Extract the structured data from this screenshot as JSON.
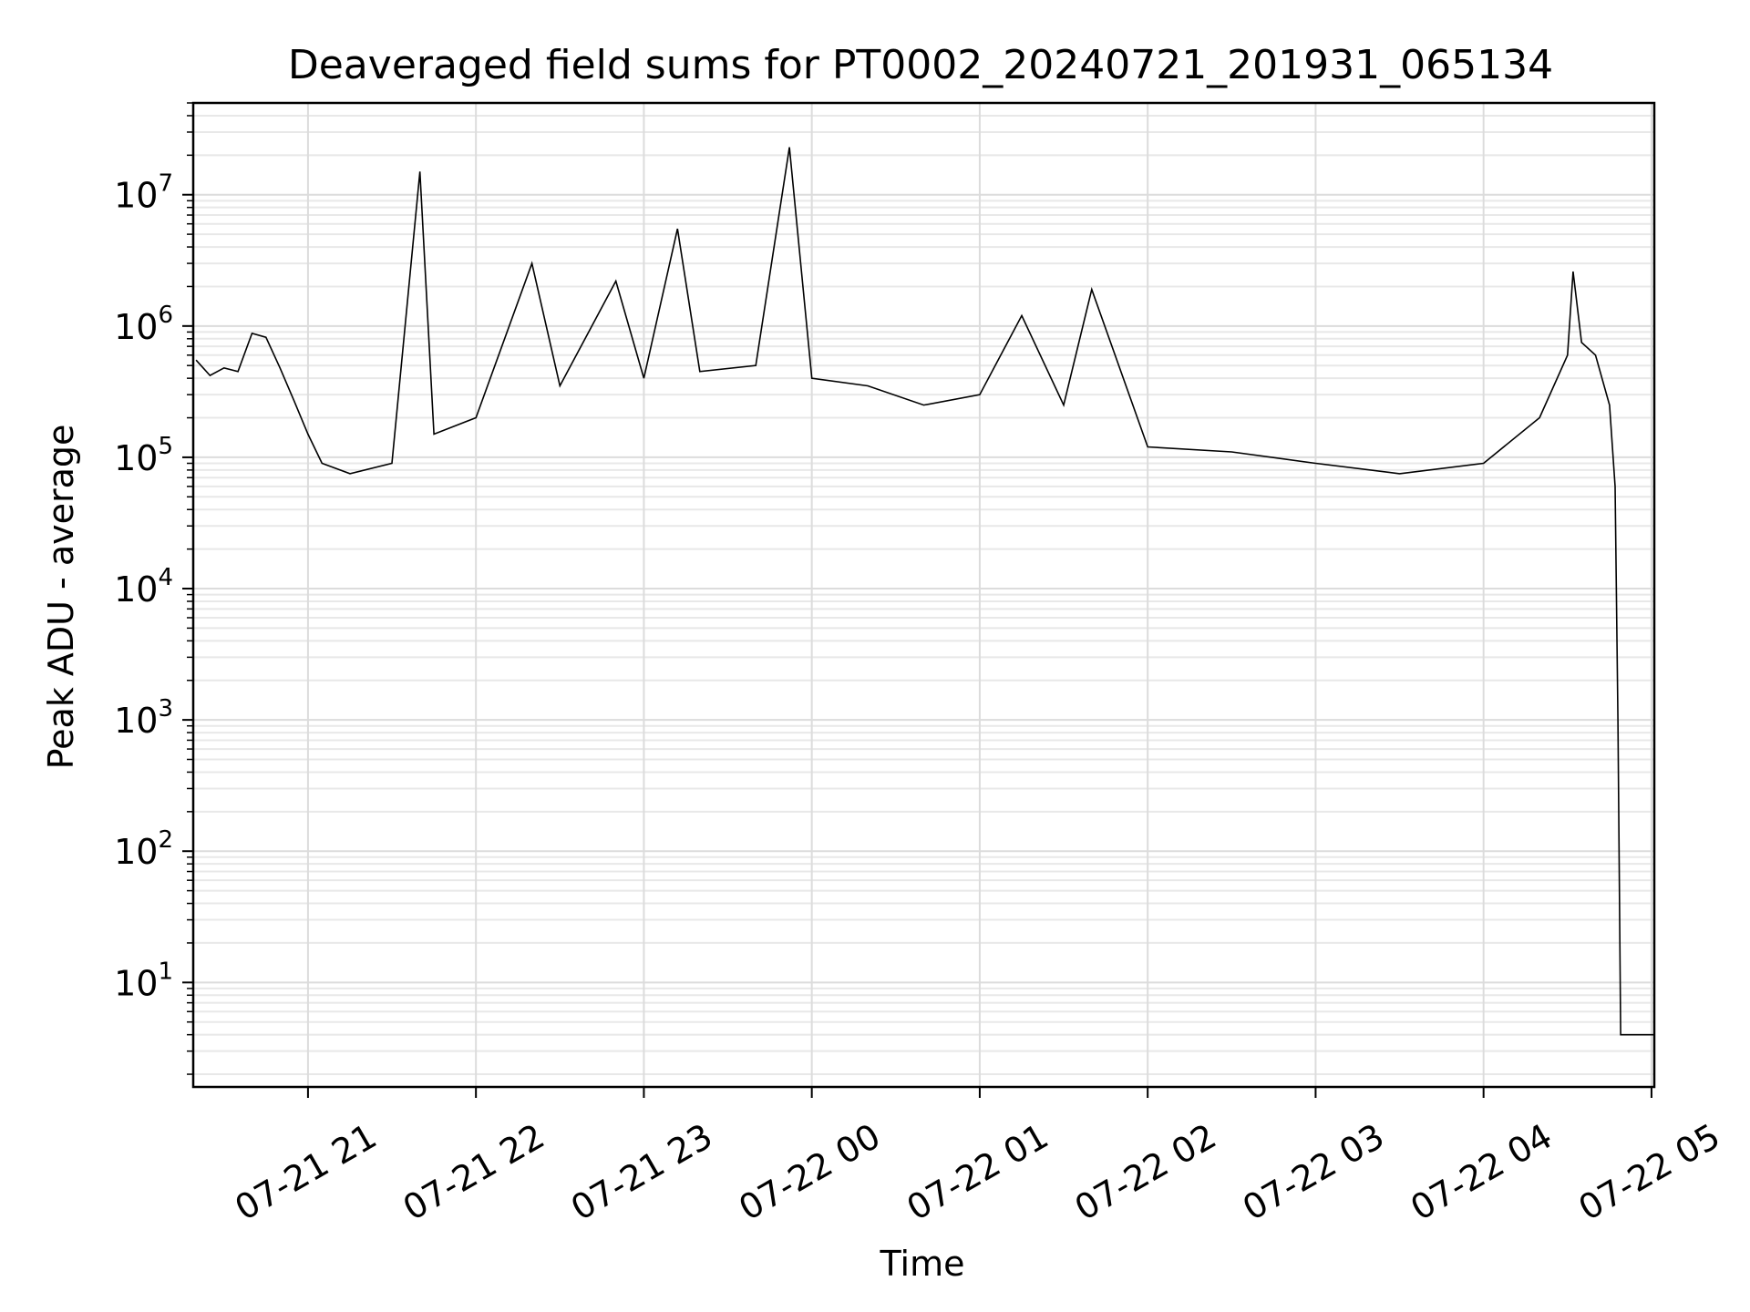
{
  "chart_data": {
    "type": "line",
    "title": "Deaveraged field sums for PT0002_20240721_201931_065134",
    "xlabel": "Time",
    "ylabel": "Peak ADU - average",
    "yscale": "log",
    "ylim": [
      1.6,
      50000000
    ],
    "xlim": [
      "07-21 20:19",
      "07-22 05:01"
    ],
    "grid": true,
    "x_tick_labels": [
      "07-21 21",
      "07-21 22",
      "07-21 23",
      "07-22 00",
      "07-22 01",
      "07-22 02",
      "07-22 03",
      "07-22 04",
      "07-22 05"
    ],
    "x_tick_hours": [
      21,
      22,
      23,
      24,
      25,
      26,
      27,
      28,
      29
    ],
    "y_tick_labels": [
      {
        "base": "10",
        "exp": "1",
        "value": 10
      },
      {
        "base": "10",
        "exp": "2",
        "value": 100
      },
      {
        "base": "10",
        "exp": "3",
        "value": 1000
      },
      {
        "base": "10",
        "exp": "4",
        "value": 10000
      },
      {
        "base": "10",
        "exp": "5",
        "value": 100000
      },
      {
        "base": "10",
        "exp": "6",
        "value": 1000000
      },
      {
        "base": "10",
        "exp": "7",
        "value": 10000000
      }
    ],
    "series": [
      {
        "color": "#000000",
        "points": [
          [
            "07-21 20:20",
            550000
          ],
          [
            "07-21 20:25",
            420000
          ],
          [
            "07-21 20:30",
            480000
          ],
          [
            "07-21 20:35",
            450000
          ],
          [
            "07-21 20:40",
            880000
          ],
          [
            "07-21 20:45",
            820000
          ],
          [
            "07-21 20:50",
            480000
          ],
          [
            "07-21 20:55",
            270000
          ],
          [
            "07-21 21:00",
            150000
          ],
          [
            "07-21 21:05",
            90000
          ],
          [
            "07-21 21:15",
            75000
          ],
          [
            "07-21 21:30",
            90000
          ],
          [
            "07-21 21:40",
            15000000
          ],
          [
            "07-21 21:45",
            150000
          ],
          [
            "07-21 22:00",
            200000
          ],
          [
            "07-21 22:20",
            3000000
          ],
          [
            "07-21 22:30",
            350000
          ],
          [
            "07-21 22:50",
            2200000
          ],
          [
            "07-21 23:00",
            400000
          ],
          [
            "07-21 23:12",
            5500000
          ],
          [
            "07-21 23:20",
            450000
          ],
          [
            "07-21 23:40",
            500000
          ],
          [
            "07-21 23:52",
            23000000
          ],
          [
            "07-22 00:00",
            400000
          ],
          [
            "07-22 00:20",
            350000
          ],
          [
            "07-22 00:40",
            250000
          ],
          [
            "07-22 01:00",
            300000
          ],
          [
            "07-22 01:15",
            1200000
          ],
          [
            "07-22 01:30",
            250000
          ],
          [
            "07-22 01:40",
            1900000
          ],
          [
            "07-22 02:00",
            120000
          ],
          [
            "07-22 02:30",
            110000
          ],
          [
            "07-22 03:00",
            90000
          ],
          [
            "07-22 03:30",
            75000
          ],
          [
            "07-22 04:00",
            90000
          ],
          [
            "07-22 04:20",
            200000
          ],
          [
            "07-22 04:30",
            600000
          ],
          [
            "07-22 04:32",
            2600000
          ],
          [
            "07-22 04:35",
            750000
          ],
          [
            "07-22 04:40",
            600000
          ],
          [
            "07-22 04:45",
            250000
          ],
          [
            "07-22 04:47",
            60000
          ],
          [
            "07-22 04:48",
            1000
          ],
          [
            "07-22 04:49",
            4
          ],
          [
            "07-22 05:01",
            4
          ]
        ]
      }
    ]
  }
}
